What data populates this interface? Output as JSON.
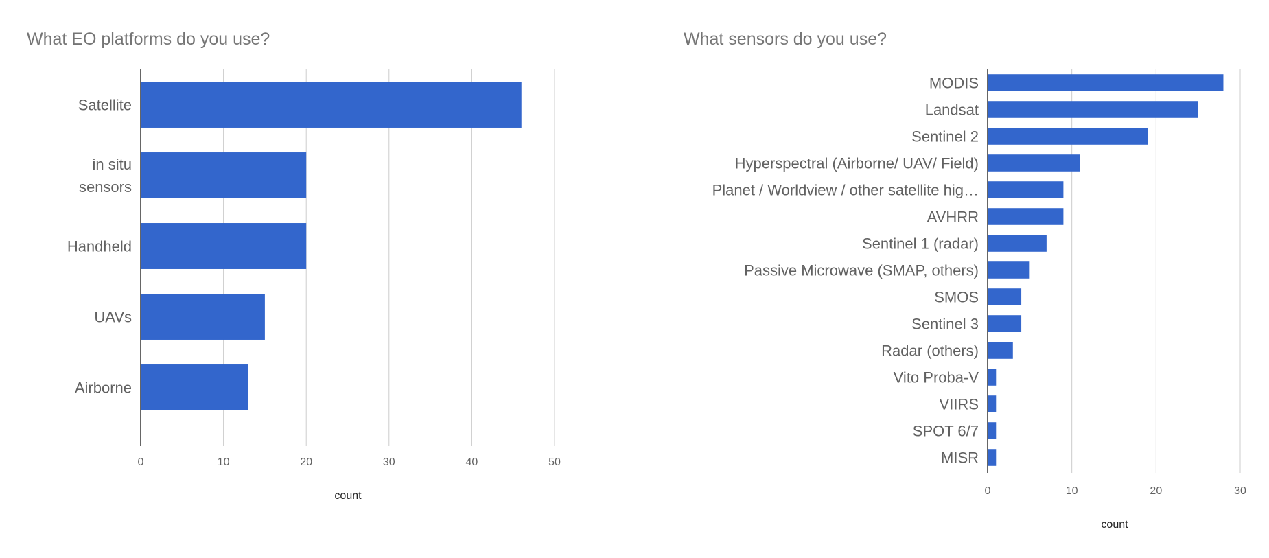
{
  "chart_data": [
    {
      "type": "bar",
      "orientation": "horizontal",
      "title": "What EO platforms do you use?",
      "xlabel": "count",
      "categories": [
        "Satellite",
        "in situ sensors",
        "Handheld",
        "UAVs",
        "Airborne"
      ],
      "category_lines": [
        [
          "Satellite"
        ],
        [
          "in situ",
          "sensors"
        ],
        [
          "Handheld"
        ],
        [
          "UAVs"
        ],
        [
          "Airborne"
        ]
      ],
      "values": [
        46,
        20,
        20,
        15,
        13
      ],
      "xlim": [
        0,
        50
      ],
      "ticks": [
        0,
        10,
        20,
        30,
        40,
        50
      ],
      "grid": true,
      "color": "#3366cc"
    },
    {
      "type": "bar",
      "orientation": "horizontal",
      "title": "What sensors do you use?",
      "xlabel": "count",
      "categories": [
        "MODIS",
        "Landsat",
        "Sentinel 2",
        "Hyperspectral (Airborne/ UAV/ Field)",
        "Planet / Worldview / other satellite hig…",
        "AVHRR",
        "Sentinel 1 (radar)",
        "Passive Microwave (SMAP, others)",
        "SMOS",
        "Sentinel 3",
        "Radar (others)",
        "Vito Proba-V",
        "VIIRS",
        "SPOT 6/7",
        "MISR"
      ],
      "values": [
        28,
        25,
        19,
        11,
        9,
        9,
        7,
        5,
        4,
        4,
        3,
        1,
        1,
        1,
        1
      ],
      "xlim": [
        0,
        30
      ],
      "ticks": [
        0,
        10,
        20,
        30
      ],
      "grid": true,
      "color": "#3366cc"
    }
  ]
}
